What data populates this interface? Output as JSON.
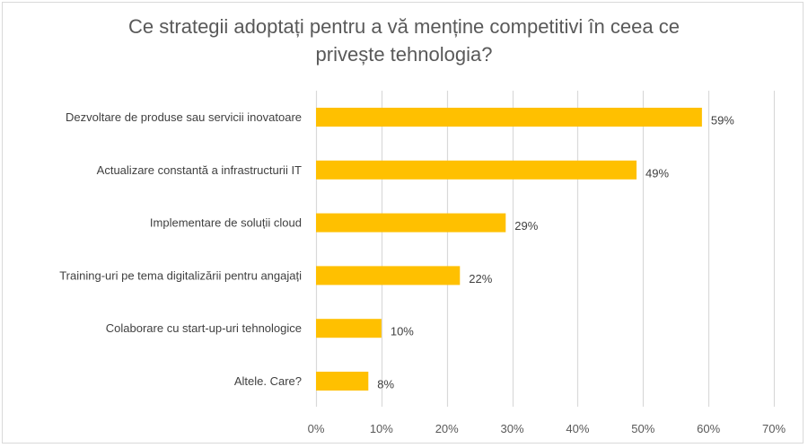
{
  "chart_data": {
    "type": "bar",
    "orientation": "horizontal",
    "title_lines": [
      "Ce strategii adoptați pentru a vă menține competitivi în ceea ce",
      "privește tehnologia?"
    ],
    "title": "Ce strategii adoptați pentru a vă menține competitivi în ceea ce privește tehnologia?",
    "categories": [
      "Dezvoltare de produse sau servicii inovatoare",
      "Actualizare constantă a infrastructurii IT",
      "Implementare de soluții cloud",
      "Training-uri pe tema digitalizării pentru angajați",
      "Colaborare cu start-up-uri tehnologice",
      "Altele. Care?"
    ],
    "values": [
      59,
      49,
      29,
      22,
      10,
      8
    ],
    "value_labels": [
      "59%",
      "49%",
      "29%",
      "22%",
      "10%",
      "8%"
    ],
    "xlabel": "",
    "ylabel": "",
    "xlim": [
      0,
      70
    ],
    "x_ticks": [
      0,
      10,
      20,
      30,
      40,
      50,
      60,
      70
    ],
    "x_tick_labels": [
      "0%",
      "10%",
      "20%",
      "30%",
      "40%",
      "50%",
      "60%",
      "70%"
    ],
    "grid": "vertical",
    "legend": "none",
    "bar_color": "#FFC000",
    "gridline_color": "#D9D9D9"
  }
}
